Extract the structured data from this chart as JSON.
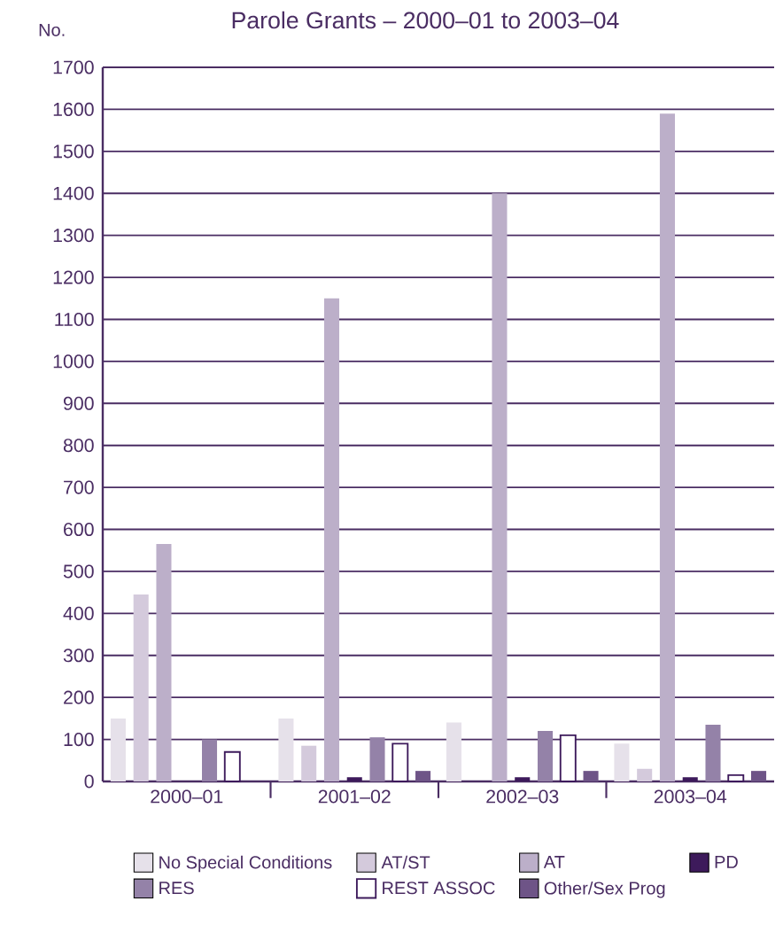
{
  "chart_data": {
    "type": "bar",
    "title": "Parole Grants – 2000–01 to 2003–04",
    "ylabel": "No.",
    "categories": [
      "2000–01",
      "2001–02",
      "2002–03",
      "2003–04"
    ],
    "series": [
      {
        "name": "No Special Conditions",
        "color": "#e6e1ea",
        "values": [
          150,
          150,
          140,
          90
        ]
      },
      {
        "name": "AT/ST",
        "color": "#d4cadc",
        "values": [
          445,
          85,
          0,
          30
        ]
      },
      {
        "name": "AT",
        "color": "#bcafc9",
        "values": [
          565,
          1150,
          1400,
          1590
        ]
      },
      {
        "name": "PD",
        "color": "#3d1a5b",
        "values": [
          0,
          10,
          10,
          10
        ]
      },
      {
        "name": "RES",
        "color": "#9482a8",
        "values": [
          100,
          105,
          120,
          135
        ]
      },
      {
        "name": "REST ASSOC",
        "color": "#ffffff",
        "values": [
          70,
          90,
          110,
          15
        ]
      },
      {
        "name": "Other/Sex Prog",
        "color": "#6e5487",
        "values": [
          0,
          25,
          25,
          25
        ]
      }
    ],
    "ylim": [
      0,
      1700
    ],
    "yticks": [
      0,
      100,
      200,
      300,
      400,
      500,
      600,
      700,
      800,
      900,
      1000,
      1100,
      1200,
      1300,
      1400,
      1500,
      1600,
      1700
    ],
    "grid": "y",
    "legend": "bottom"
  }
}
